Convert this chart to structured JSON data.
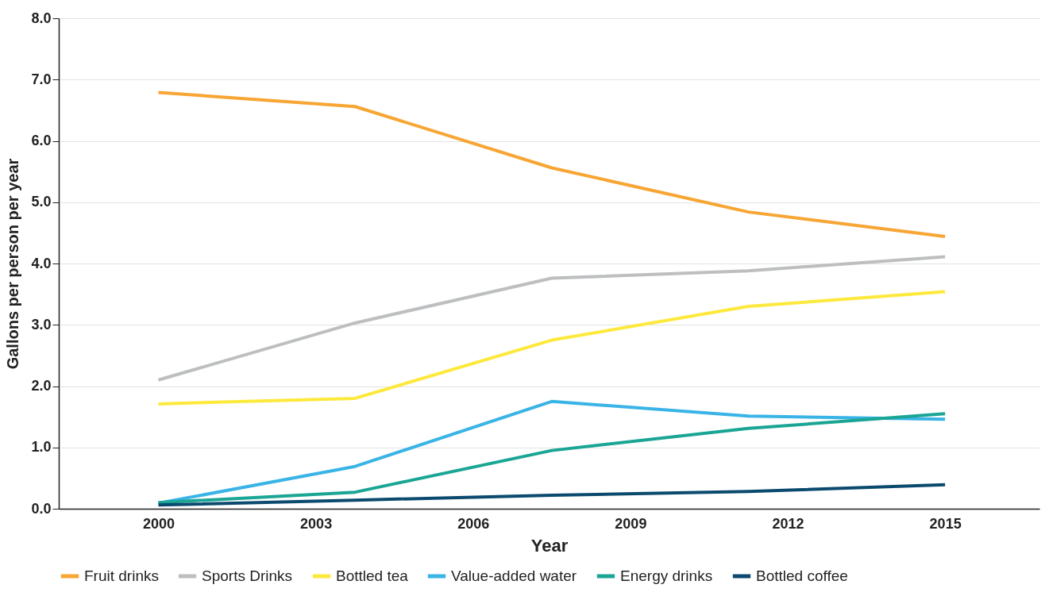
{
  "chart_data": {
    "type": "line",
    "xlabel": "Year",
    "ylabel": "Gallons per person per year",
    "x": [
      2000,
      2003.75,
      2007.5,
      2011.25,
      2015
    ],
    "xlim": [
      1998.1,
      2016.8
    ],
    "xticks": [
      2000,
      2003,
      2006,
      2009,
      2012,
      2015
    ],
    "ylim": [
      0,
      8
    ],
    "yticks": [
      {
        "value": 0,
        "label": "0.0"
      },
      {
        "value": 1,
        "label": "1.0"
      },
      {
        "value": 2,
        "label": "2.0"
      },
      {
        "value": 3,
        "label": "3.0"
      },
      {
        "value": 4,
        "label": "4.0"
      },
      {
        "value": 5,
        "label": "5.0"
      },
      {
        "value": 6,
        "label": "6.0"
      },
      {
        "value": 7,
        "label": "7.0"
      },
      {
        "value": 8,
        "label": "8.0"
      }
    ],
    "grid": "y",
    "legend": "bottom",
    "marker": "none",
    "line_style": "solid",
    "series": [
      {
        "name": "Fruit drinks",
        "color": "#f7a533",
        "values": [
          6.79,
          6.56,
          5.56,
          4.84,
          4.44
        ]
      },
      {
        "name": "Sports Drinks",
        "color": "#bcbec0",
        "values": [
          2.1,
          3.03,
          3.76,
          3.88,
          4.11
        ]
      },
      {
        "name": "Bottled tea",
        "color": "#fde93c",
        "values": [
          1.71,
          1.8,
          2.75,
          3.3,
          3.54
        ]
      },
      {
        "name": "Value-added water",
        "color": "#3ab4e6",
        "values": [
          0.09,
          0.69,
          1.75,
          1.51,
          1.46
        ]
      },
      {
        "name": "Energy drinks",
        "color": "#1aa594",
        "values": [
          0.1,
          0.27,
          0.95,
          1.31,
          1.55
        ]
      },
      {
        "name": "Bottled coffee",
        "color": "#0b4a6e",
        "values": [
          0.06,
          0.14,
          0.22,
          0.28,
          0.39
        ]
      }
    ]
  }
}
